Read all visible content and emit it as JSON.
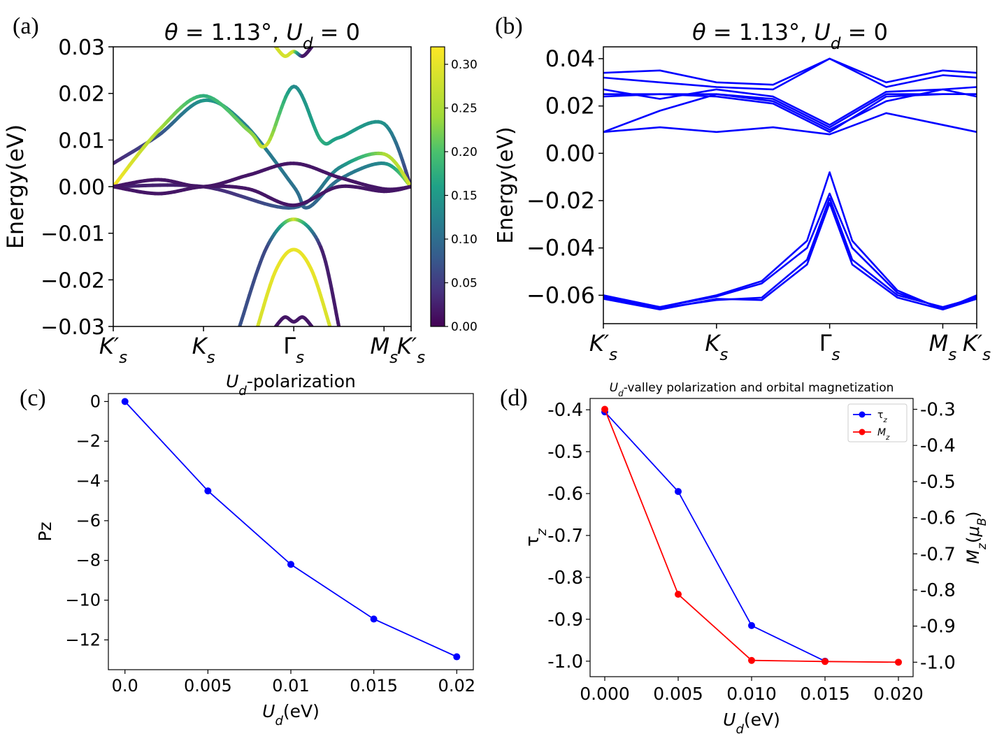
{
  "panels": {
    "a": {
      "letter": "(a)"
    },
    "b": {
      "letter": "(b)"
    },
    "c": {
      "letter": "(c)"
    },
    "d": {
      "letter": "(d)"
    }
  },
  "chart_data": [
    {
      "id": "a",
      "type": "line",
      "title": "θ = 1.13°, U_d = 0",
      "ylabel": "Energy(eV)",
      "ylim": [
        -0.03,
        0.03
      ],
      "yticks": [
        "0.03",
        "0.02",
        "0.01",
        "0.00",
        "−0.01",
        "−0.02",
        "−0.03"
      ],
      "xticks": [
        "K′s",
        "Ks",
        "Γs",
        "Ms",
        "K′s"
      ],
      "colorbar": {
        "ticks": [
          "0.30",
          "0.25",
          "0.20",
          "0.15",
          "0.10",
          "0.05",
          "0.00"
        ],
        "range": [
          0,
          0.32
        ],
        "colormap": "viridis"
      },
      "grid": false,
      "bands": [
        {
          "x": [
            0,
            0.5,
            1.0,
            1.45,
            2.0,
            2.15,
            2.5,
            3.0,
            3.3
          ],
          "y": [
            0.005,
            0.011,
            0.0185,
            0.0135,
            0.0,
            -0.0045,
            0.0015,
            0.005,
            0.0
          ],
          "c": [
            0.03,
            0.08,
            0.17,
            0.14,
            0.12,
            0.1,
            0.12,
            0.15,
            0.3
          ]
        },
        {
          "x": [
            0,
            0.5,
            1.0,
            1.5,
            1.7,
            2.0,
            2.3,
            2.5,
            3.0,
            3.3
          ],
          "y": [
            0.0,
            0.012,
            0.0195,
            0.012,
            0.009,
            0.0215,
            0.01,
            0.0105,
            0.0135,
            0.0
          ],
          "c": [
            0.32,
            0.28,
            0.2,
            0.26,
            0.3,
            0.15,
            0.2,
            0.18,
            0.16,
            0.03
          ]
        },
        {
          "x": [
            0,
            1.0,
            2.0,
            2.5,
            3.0,
            3.3
          ],
          "y": [
            0.0,
            0.0,
            -0.0045,
            0.004,
            0.007,
            0.0
          ],
          "c": [
            0.03,
            0.03,
            0.1,
            0.15,
            0.28,
            0.3
          ]
        },
        {
          "x": [
            0,
            0.5,
            1.0,
            1.5,
            2.0,
            2.5,
            3.0,
            3.3
          ],
          "y": [
            0.0,
            0.0015,
            0.0,
            0.0025,
            0.005,
            0.002,
            -0.0005,
            0.0
          ],
          "c": [
            0.02,
            0.02,
            0.02,
            0.02,
            0.02,
            0.02,
            0.02,
            0.02
          ]
        },
        {
          "x": [
            0,
            0.5,
            1.0,
            1.5,
            2.0,
            2.5,
            3.0,
            3.3
          ],
          "y": [
            0.0,
            -0.0015,
            0.0,
            -0.0005,
            -0.004,
            0.0,
            -0.001,
            0.0
          ],
          "c": [
            0.02,
            0.02,
            0.02,
            0.02,
            0.02,
            0.02,
            0.02,
            0.02
          ]
        },
        {
          "x": [
            1.4,
            1.7,
            2.0,
            2.3,
            2.5
          ],
          "y": [
            -0.03,
            -0.013,
            -0.007,
            -0.013,
            -0.03
          ],
          "c": [
            0.08,
            0.07,
            0.3,
            0.03,
            0.02
          ]
        },
        {
          "x": [
            1.6,
            1.8,
            2.0,
            2.2,
            2.4
          ],
          "y": [
            -0.03,
            -0.018,
            -0.0135,
            -0.018,
            -0.03
          ],
          "c": [
            0.3,
            0.31,
            0.31,
            0.31,
            0.3
          ]
        },
        {
          "x": [
            1.8,
            1.9,
            2.0,
            2.1,
            2.2
          ],
          "y": [
            0.03,
            0.028,
            0.029,
            0.028,
            0.03
          ],
          "c": [
            0.3,
            0.3,
            0.3,
            0.02,
            0.02
          ]
        },
        {
          "x": [
            1.8,
            1.9,
            2.0,
            2.1,
            2.2
          ],
          "y": [
            -0.03,
            -0.028,
            -0.029,
            -0.028,
            -0.03
          ],
          "c": [
            0.02,
            0.02,
            0.02,
            0.02,
            0.02
          ]
        }
      ]
    },
    {
      "id": "b",
      "type": "line",
      "title": "θ = 1.13°, U_d = 0",
      "ylabel": "Energy(eV)",
      "ylim": [
        -0.072,
        0.045
      ],
      "yticks": [
        {
          "v": 0.04,
          "t": "0.04"
        },
        {
          "v": 0.02,
          "t": "0.02"
        },
        {
          "v": 0.0,
          "t": "0.00"
        },
        {
          "v": -0.02,
          "t": "−0.02"
        },
        {
          "v": -0.04,
          "t": "−0.04"
        },
        {
          "v": -0.06,
          "t": "−0.06"
        }
      ],
      "xticks": [
        "K′s",
        "Ks",
        "Γs",
        "Ms",
        "K′s"
      ],
      "grid": false,
      "color": "#0000ff",
      "bands": [
        {
          "x": [
            0,
            0.5,
            1.0,
            1.5,
            2.0,
            2.5,
            3.0,
            3.3
          ],
          "y": [
            0.009,
            0.011,
            0.009,
            0.011,
            0.008,
            0.017,
            0.012,
            0.009
          ]
        },
        {
          "x": [
            0,
            0.5,
            1.0,
            1.5,
            2.0,
            2.5,
            3.0,
            3.3
          ],
          "y": [
            0.009,
            0.018,
            0.025,
            0.022,
            0.01,
            0.022,
            0.027,
            0.024
          ]
        },
        {
          "x": [
            0,
            0.5,
            1.0,
            1.5,
            2.0,
            2.5,
            3.0,
            3.3
          ],
          "y": [
            0.024,
            0.025,
            0.024,
            0.021,
            0.009,
            0.024,
            0.025,
            0.025
          ]
        },
        {
          "x": [
            0,
            0.5,
            1.0,
            1.5,
            2.0,
            2.5,
            3.0,
            3.3
          ],
          "y": [
            0.025,
            0.025,
            0.025,
            0.023,
            0.011,
            0.025,
            0.025,
            0.025
          ]
        },
        {
          "x": [
            0,
            0.5,
            1.0,
            1.5,
            2.0,
            2.5,
            3.0,
            3.3
          ],
          "y": [
            0.027,
            0.023,
            0.027,
            0.024,
            0.012,
            0.026,
            0.027,
            0.028
          ]
        },
        {
          "x": [
            0,
            0.5,
            1.0,
            1.5,
            2.0,
            2.5,
            3.0,
            3.3
          ],
          "y": [
            0.032,
            0.03,
            0.028,
            0.027,
            0.04,
            0.028,
            0.033,
            0.032
          ]
        },
        {
          "x": [
            0,
            0.5,
            1.0,
            1.5,
            2.0,
            2.5,
            3.0,
            3.3
          ],
          "y": [
            0.034,
            0.035,
            0.03,
            0.029,
            0.04,
            0.03,
            0.035,
            0.034
          ]
        },
        {
          "x": [
            0,
            0.5,
            1.0,
            1.4,
            1.8,
            2.0,
            2.2,
            2.6,
            3.0,
            3.3
          ],
          "y": [
            -0.06,
            -0.065,
            -0.06,
            -0.054,
            -0.037,
            -0.008,
            -0.037,
            -0.058,
            -0.066,
            -0.06
          ]
        },
        {
          "x": [
            0,
            0.5,
            1.0,
            1.4,
            1.8,
            2.0,
            2.2,
            2.6,
            3.0,
            3.3
          ],
          "y": [
            -0.0605,
            -0.065,
            -0.0605,
            -0.055,
            -0.04,
            -0.017,
            -0.04,
            -0.059,
            -0.0655,
            -0.0605
          ]
        },
        {
          "x": [
            0,
            0.5,
            1.0,
            1.4,
            1.8,
            2.0,
            2.2,
            2.6,
            3.0,
            3.3
          ],
          "y": [
            -0.061,
            -0.0655,
            -0.062,
            -0.061,
            -0.045,
            -0.019,
            -0.045,
            -0.06,
            -0.065,
            -0.061
          ]
        },
        {
          "x": [
            0,
            0.5,
            1.0,
            1.4,
            1.8,
            2.0,
            2.2,
            2.6,
            3.0,
            3.3
          ],
          "y": [
            -0.0615,
            -0.066,
            -0.0615,
            -0.062,
            -0.047,
            -0.021,
            -0.047,
            -0.061,
            -0.066,
            -0.0615
          ]
        }
      ]
    },
    {
      "id": "c",
      "type": "line",
      "title": "U_d-polarization",
      "xlabel": "U_d(eV)",
      "ylabel": "Pz",
      "xlim": [
        -0.001,
        0.021
      ],
      "ylim": [
        -13.5,
        0.4
      ],
      "xticks": [
        {
          "v": 0.0,
          "t": "0.0"
        },
        {
          "v": 0.005,
          "t": "0.005"
        },
        {
          "v": 0.01,
          "t": "0.01"
        },
        {
          "v": 0.015,
          "t": "0.015"
        },
        {
          "v": 0.02,
          "t": "0.02"
        }
      ],
      "yticks": [
        {
          "v": 0,
          "t": "0"
        },
        {
          "v": -2,
          "t": "−2"
        },
        {
          "v": -4,
          "t": "−4"
        },
        {
          "v": -6,
          "t": "−6"
        },
        {
          "v": -8,
          "t": "−8"
        },
        {
          "v": -10,
          "t": "−10"
        },
        {
          "v": -12,
          "t": "−12"
        }
      ],
      "grid": false,
      "series": [
        {
          "color": "#0000ff",
          "x": [
            0.0,
            0.005,
            0.01,
            0.015,
            0.02
          ],
          "y": [
            0.0,
            -4.5,
            -8.2,
            -10.95,
            -12.85
          ]
        }
      ]
    },
    {
      "id": "d",
      "type": "line",
      "title": "U_d-valley polarization and orbital magnetization",
      "xlabel": "U_d(eV)",
      "ylabel": "τz",
      "y2label": "Mz(μB)",
      "xlim": [
        -0.001,
        0.021
      ],
      "ylim": [
        -1.037,
        -0.373
      ],
      "y2lim": [
        -1.04,
        -0.27
      ],
      "xticks": [
        {
          "v": 0.0,
          "t": "0.000"
        },
        {
          "v": 0.005,
          "t": "0.005"
        },
        {
          "v": 0.01,
          "t": "0.010"
        },
        {
          "v": 0.015,
          "t": "0.015"
        },
        {
          "v": 0.02,
          "t": "0.020"
        }
      ],
      "yticks": [
        {
          "v": -0.4,
          "t": "-0.4"
        },
        {
          "v": -0.5,
          "t": "-0.5"
        },
        {
          "v": -0.6,
          "t": "-0.6"
        },
        {
          "v": -0.7,
          "t": "-0.7"
        },
        {
          "v": -0.8,
          "t": "-0.8"
        },
        {
          "v": -0.9,
          "t": "-0.9"
        },
        {
          "v": -1.0,
          "t": "-1.0"
        }
      ],
      "y2ticks": [
        {
          "v": -0.3,
          "t": "-0.3"
        },
        {
          "v": -0.4,
          "t": "-0.4"
        },
        {
          "v": -0.5,
          "t": "-0.5"
        },
        {
          "v": -0.6,
          "t": "-0.6"
        },
        {
          "v": -0.7,
          "t": "-0.7"
        },
        {
          "v": -0.8,
          "t": "-0.8"
        },
        {
          "v": -0.9,
          "t": "-0.9"
        },
        {
          "v": -1.0,
          "t": "-1.0"
        }
      ],
      "legend": "top-right",
      "grid": false,
      "series": [
        {
          "name": "τz",
          "axis": "left",
          "color": "#0000ff",
          "x": [
            0.0,
            0.005,
            0.01,
            0.015
          ],
          "y": [
            -0.405,
            -0.595,
            -0.915,
            -1.0
          ]
        },
        {
          "name": "Mz",
          "axis": "right",
          "color": "#ff0000",
          "x": [
            0.0,
            0.005,
            0.01,
            0.015,
            0.02
          ],
          "y": [
            -0.3,
            -0.812,
            -0.995,
            -0.998,
            -1.0
          ]
        }
      ]
    }
  ]
}
